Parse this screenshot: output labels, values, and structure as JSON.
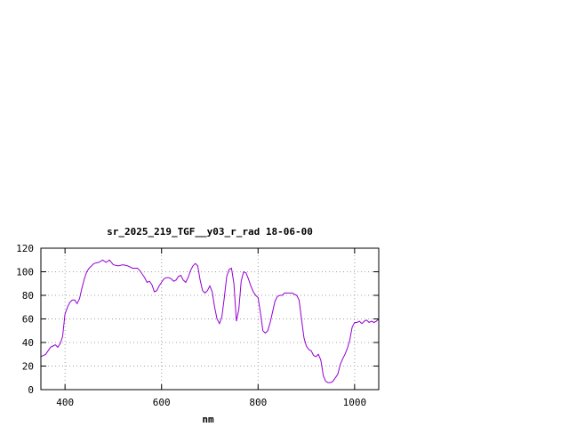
{
  "chart_data": {
    "type": "line",
    "title": "sr_2025_219_TGF__y03_r_rad 18-06-00",
    "xlabel": "nm",
    "ylabel": "",
    "xlim": [
      350,
      1050
    ],
    "ylim": [
      0,
      120
    ],
    "x_ticks": [
      400,
      600,
      800,
      1000
    ],
    "y_ticks": [
      0,
      20,
      40,
      60,
      80,
      100,
      120
    ],
    "grid": true,
    "series": [
      {
        "color": "#9400d3",
        "x": [
          350,
          360,
          365,
          370,
          375,
          380,
          385,
          390,
          395,
          400,
          405,
          410,
          415,
          420,
          425,
          430,
          435,
          440,
          445,
          450,
          460,
          470,
          478,
          485,
          492,
          500,
          510,
          520,
          530,
          540,
          550,
          555,
          560,
          565,
          570,
          575,
          580,
          585,
          590,
          595,
          600,
          605,
          610,
          615,
          620,
          625,
          630,
          635,
          640,
          645,
          650,
          655,
          660,
          665,
          670,
          675,
          680,
          685,
          690,
          695,
          700,
          705,
          710,
          715,
          720,
          725,
          730,
          735,
          740,
          745,
          750,
          755,
          760,
          765,
          770,
          775,
          780,
          785,
          790,
          795,
          800,
          805,
          810,
          815,
          820,
          825,
          830,
          835,
          840,
          845,
          850,
          855,
          860,
          870,
          880,
          885,
          890,
          895,
          900,
          905,
          910,
          915,
          920,
          925,
          930,
          935,
          940,
          945,
          950,
          955,
          960,
          965,
          970,
          975,
          980,
          985,
          990,
          995,
          1000,
          1005,
          1010,
          1015,
          1020,
          1025,
          1030,
          1035,
          1040,
          1045,
          1050
        ],
        "values": [
          28,
          30,
          33,
          36,
          37,
          38,
          36,
          39,
          45,
          64,
          70,
          74,
          76,
          76,
          73,
          77,
          86,
          94,
          100,
          103,
          107,
          108,
          110,
          108,
          110,
          106,
          105,
          106,
          105,
          103,
          103,
          101,
          98,
          95,
          91,
          92,
          89,
          83,
          84,
          88,
          91,
          94,
          95,
          95,
          94,
          92,
          93,
          96,
          97,
          93,
          91,
          95,
          101,
          105,
          107,
          105,
          93,
          84,
          82,
          84,
          88,
          83,
          70,
          60,
          56,
          62,
          78,
          96,
          102,
          103,
          90,
          58,
          68,
          92,
          100,
          99,
          94,
          88,
          83,
          80,
          78,
          65,
          50,
          48,
          50,
          57,
          66,
          75,
          79,
          80,
          80,
          82,
          82,
          82,
          80,
          76,
          60,
          44,
          37,
          34,
          33,
          29,
          28,
          30,
          25,
          12,
          7,
          6,
          6,
          7,
          10,
          13,
          21,
          26,
          30,
          35,
          42,
          53,
          57,
          57,
          58,
          56,
          58,
          59,
          57,
          58,
          57,
          58,
          60
        ]
      }
    ]
  }
}
